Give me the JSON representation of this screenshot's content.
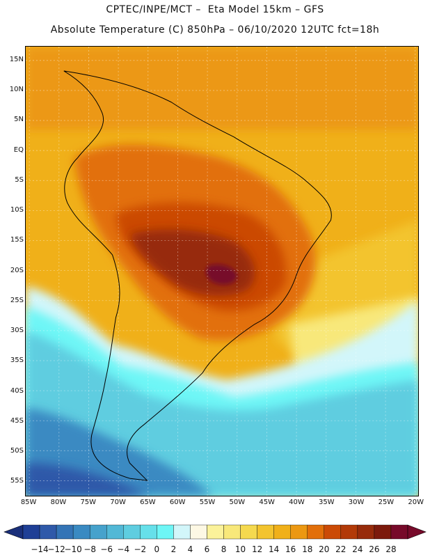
{
  "header": {
    "line1": "CPTEC/INPE/MCT –  Eta Model 15km – GFS",
    "line2": "Absolute Temperature (C) 850hPa – 06/10/2020 12UTC fct=18h"
  },
  "axes": {
    "lat_labels": [
      "15N",
      "10N",
      "5N",
      "EQ",
      "5S",
      "10S",
      "15S",
      "20S",
      "25S",
      "30S",
      "35S",
      "40S",
      "45S",
      "50S",
      "55S"
    ],
    "lat_values": [
      15,
      10,
      5,
      0,
      -5,
      -10,
      -15,
      -20,
      -25,
      -30,
      -35,
      -40,
      -45,
      -50,
      -55
    ],
    "lon_labels": [
      "85W",
      "80W",
      "75W",
      "70W",
      "65W",
      "60W",
      "55W",
      "50W",
      "45W",
      "40W",
      "35W",
      "30W",
      "25W",
      "20W"
    ],
    "lon_values": [
      -85,
      -80,
      -75,
      -70,
      -65,
      -60,
      -55,
      -50,
      -45,
      -40,
      -35,
      -30,
      -25,
      -20
    ],
    "lon_range": [
      -85.6,
      -19.5
    ],
    "lat_range": [
      -57.5,
      17.3
    ]
  },
  "colorbar": {
    "labels": [
      "-14",
      "-12",
      "-10",
      "-8",
      "-6",
      "-4",
      "-2",
      "0",
      "2",
      "4",
      "6",
      "8",
      "10",
      "12",
      "14",
      "16",
      "18",
      "20",
      "22",
      "24",
      "26",
      "28"
    ],
    "values": [
      -14,
      -12,
      -10,
      -8,
      -6,
      -4,
      -2,
      0,
      2,
      4,
      6,
      8,
      10,
      12,
      14,
      16,
      18,
      20,
      22,
      24,
      26,
      28
    ],
    "colors": [
      "#1f3f96",
      "#2f59a9",
      "#3474b6",
      "#3a8ac2",
      "#46a2cc",
      "#52b8d6",
      "#5fcde0",
      "#66e0ea",
      "#6ef6f6",
      "#d2f6fa",
      "#fdf8e4",
      "#fbf29a",
      "#f8e87a",
      "#f5d94e",
      "#f3c42e",
      "#f0b019",
      "#ec9812",
      "#e26f0a",
      "#cb4a06",
      "#b23a08",
      "#972b0b",
      "#7c1a0c",
      "#770a2a"
    ],
    "under_color": "#1a2f7a",
    "over_color": "#770a2a"
  }
}
